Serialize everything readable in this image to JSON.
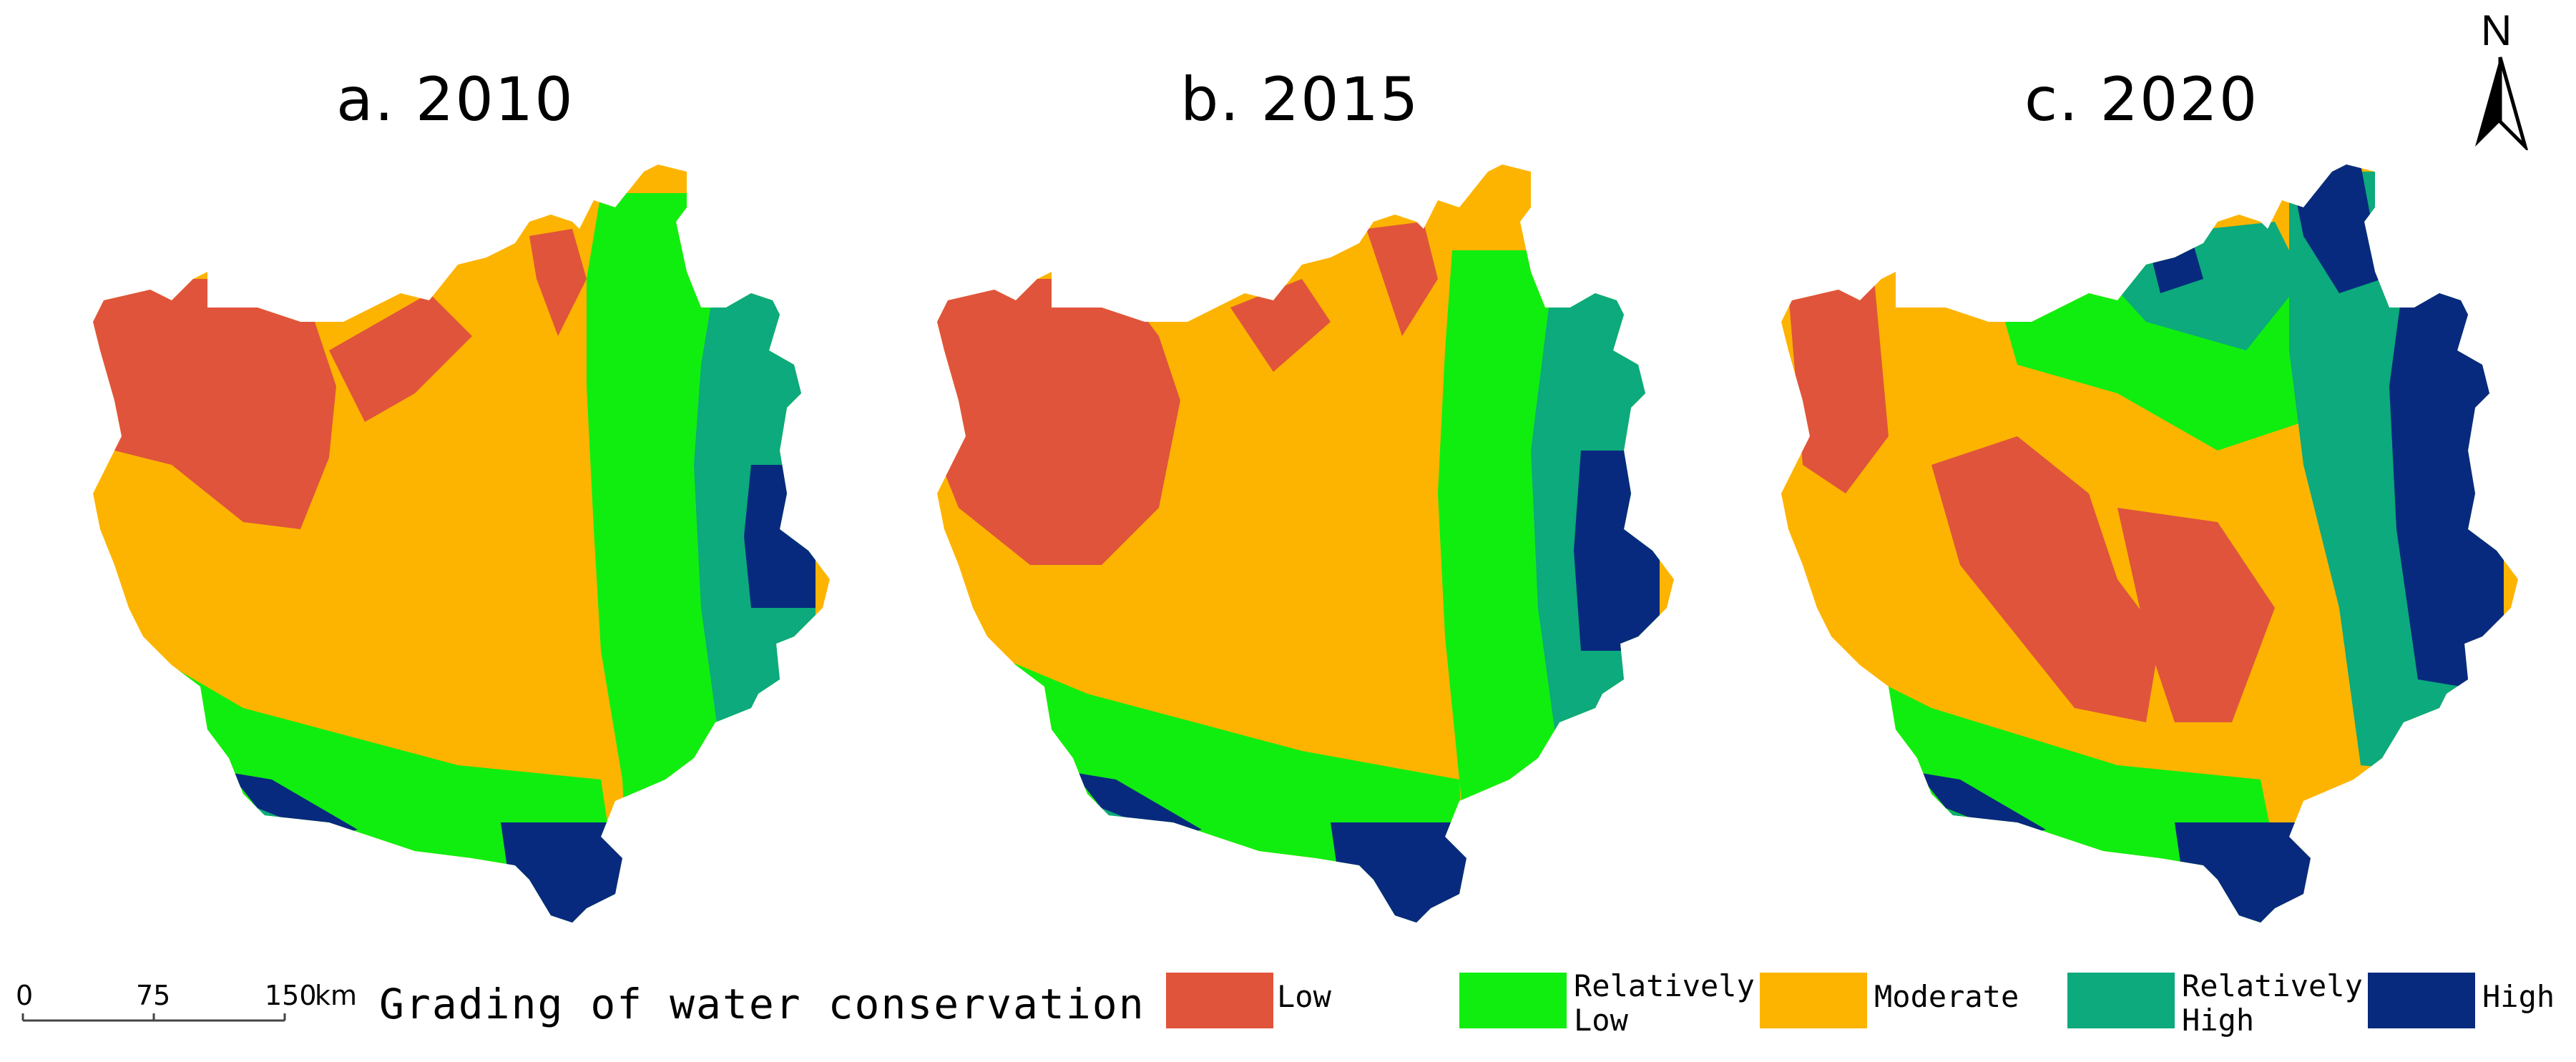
{
  "panels": [
    {
      "title": "a. 2010"
    },
    {
      "title": "b. 2015"
    },
    {
      "title": "c. 2020"
    }
  ],
  "north_arrow": {
    "label": "N"
  },
  "scale_bar": {
    "ticks": [
      "0",
      "75",
      "150"
    ],
    "unit": "km"
  },
  "legend": {
    "title": "Grading of water conservation",
    "classes": [
      {
        "label_line1": "Low",
        "label_line2": "",
        "color": "#E0543B"
      },
      {
        "label_line1": "Relatively",
        "label_line2": "Low",
        "color": "#10EE10"
      },
      {
        "label_line1": "Moderate",
        "label_line2": "",
        "color": "#FDB400"
      },
      {
        "label_line1": "Relatively",
        "label_line2": "High",
        "color": "#0CAA7C"
      },
      {
        "label_line1": "High",
        "label_line2": "",
        "color": "#082A7E"
      }
    ]
  }
}
